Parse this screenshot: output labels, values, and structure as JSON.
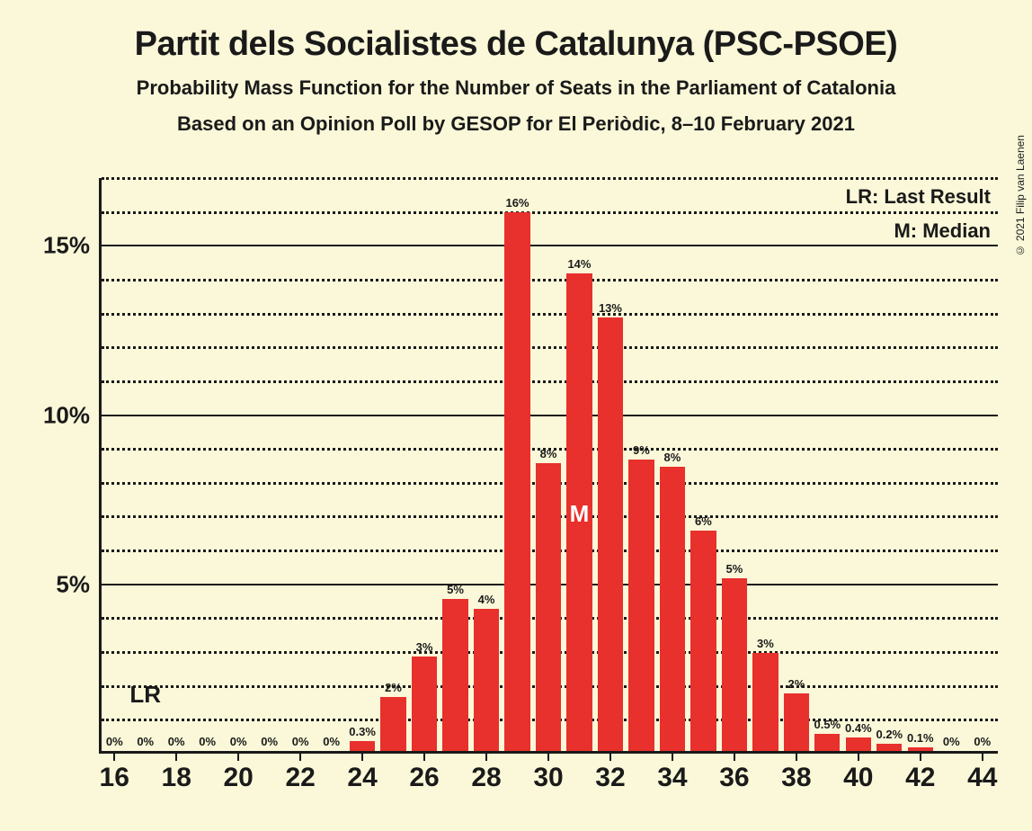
{
  "copyright": "© 2021 Filip van Laenen",
  "title": "Partit dels Socialistes de Catalunya (PSC-PSOE)",
  "subtitle1": "Probability Mass Function for the Number of Seats in the Parliament of Catalonia",
  "subtitle2": "Based on an Opinion Poll by GESOP for El Periòdic, 8–10 February 2021",
  "legend": {
    "lr": "LR: Last Result",
    "m": "M: Median"
  },
  "chart": {
    "type": "bar",
    "background_color": "#faf8d8",
    "bar_color": "#e8302c",
    "axis_color": "#1a1a1a",
    "grid_color": "#1a1a1a",
    "x_min": 15.5,
    "x_max": 44.5,
    "y_min": 0,
    "y_max": 17,
    "y_major_ticks": [
      5,
      10,
      15
    ],
    "y_major_labels": [
      "5%",
      "10%",
      "15%"
    ],
    "y_minor_step": 1,
    "x_ticks": [
      16,
      18,
      20,
      22,
      24,
      26,
      28,
      30,
      32,
      34,
      36,
      38,
      40,
      42,
      44
    ],
    "bar_width_ratio": 0.82,
    "lr_x": 17,
    "lr_label": "LR",
    "m_x": 31,
    "m_label": "M",
    "bars": [
      {
        "x": 16,
        "value": 0,
        "label": "0%"
      },
      {
        "x": 17,
        "value": 0,
        "label": "0%"
      },
      {
        "x": 18,
        "value": 0,
        "label": "0%"
      },
      {
        "x": 19,
        "value": 0,
        "label": "0%"
      },
      {
        "x": 20,
        "value": 0,
        "label": "0%"
      },
      {
        "x": 21,
        "value": 0,
        "label": "0%"
      },
      {
        "x": 22,
        "value": 0,
        "label": "0%"
      },
      {
        "x": 23,
        "value": 0,
        "label": "0%"
      },
      {
        "x": 24,
        "value": 0.3,
        "label": "0.3%"
      },
      {
        "x": 25,
        "value": 1.6,
        "label": "2%"
      },
      {
        "x": 26,
        "value": 2.8,
        "label": "3%"
      },
      {
        "x": 27,
        "value": 4.5,
        "label": "5%"
      },
      {
        "x": 28,
        "value": 4.2,
        "label": "4%"
      },
      {
        "x": 29,
        "value": 15.9,
        "label": "16%"
      },
      {
        "x": 30,
        "value": 8.5,
        "label": "8%"
      },
      {
        "x": 31,
        "value": 14.1,
        "label": "14%"
      },
      {
        "x": 32,
        "value": 12.8,
        "label": "13%"
      },
      {
        "x": 33,
        "value": 8.6,
        "label": "9%"
      },
      {
        "x": 34,
        "value": 8.4,
        "label": "8%"
      },
      {
        "x": 35,
        "value": 6.5,
        "label": "6%"
      },
      {
        "x": 36,
        "value": 5.1,
        "label": "5%"
      },
      {
        "x": 37,
        "value": 2.9,
        "label": "3%"
      },
      {
        "x": 38,
        "value": 1.7,
        "label": "2%"
      },
      {
        "x": 39,
        "value": 0.5,
        "label": "0.5%"
      },
      {
        "x": 40,
        "value": 0.4,
        "label": "0.4%"
      },
      {
        "x": 41,
        "value": 0.2,
        "label": "0.2%"
      },
      {
        "x": 42,
        "value": 0.1,
        "label": "0.1%"
      },
      {
        "x": 43,
        "value": 0,
        "label": "0%"
      },
      {
        "x": 44,
        "value": 0,
        "label": "0%"
      }
    ]
  }
}
